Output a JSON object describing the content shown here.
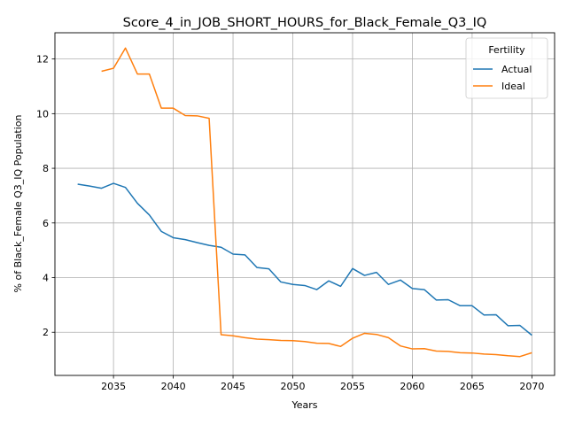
{
  "chart_data": {
    "type": "line",
    "title": "Score_4_in_JOB_SHORT_HOURS_for_Black_Female_Q3_IQ",
    "xlabel": "Years",
    "ylabel": "% of Black_Female Q3_IQ Population",
    "xlim": [
      2030.1,
      2071.9
    ],
    "ylim": [
      0.42,
      12.96
    ],
    "xticks": [
      2035,
      2040,
      2045,
      2050,
      2055,
      2060,
      2065,
      2070
    ],
    "yticks": [
      2,
      4,
      6,
      8,
      10,
      12
    ],
    "grid": true,
    "legend": {
      "title": "Fertility",
      "placement": "top-right"
    },
    "series": [
      {
        "name": "Actual",
        "color": "#1f77b4",
        "x": [
          2032,
          2033,
          2034,
          2035,
          2036,
          2037,
          2038,
          2039,
          2040,
          2041,
          2042,
          2043,
          2044,
          2045,
          2046,
          2047,
          2048,
          2049,
          2050,
          2051,
          2052,
          2053,
          2054,
          2055,
          2056,
          2057,
          2058,
          2059,
          2060,
          2061,
          2062,
          2063,
          2064,
          2065,
          2066,
          2067,
          2068,
          2069,
          2070
        ],
        "y": [
          7.42,
          7.35,
          7.27,
          7.45,
          7.3,
          6.72,
          6.29,
          5.69,
          5.46,
          5.39,
          5.28,
          5.18,
          5.11,
          4.86,
          4.83,
          4.37,
          4.32,
          3.84,
          3.75,
          3.71,
          3.56,
          3.88,
          3.68,
          4.33,
          4.08,
          4.19,
          3.75,
          3.91,
          3.6,
          3.56,
          3.18,
          3.19,
          2.97,
          2.97,
          2.63,
          2.64,
          2.24,
          2.25,
          1.89
        ]
      },
      {
        "name": "Ideal",
        "color": "#ff7f0e",
        "x": [
          2034,
          2035,
          2036,
          2037,
          2038,
          2039,
          2040,
          2041,
          2042,
          2043,
          2044,
          2045,
          2046,
          2047,
          2048,
          2049,
          2050,
          2051,
          2052,
          2053,
          2054,
          2055,
          2056,
          2057,
          2058,
          2059,
          2060,
          2061,
          2062,
          2063,
          2064,
          2065,
          2066,
          2067,
          2068,
          2069,
          2070
        ],
        "y": [
          11.55,
          11.66,
          12.4,
          11.45,
          11.45,
          10.2,
          10.2,
          9.93,
          9.92,
          9.83,
          1.91,
          1.87,
          1.8,
          1.75,
          1.73,
          1.7,
          1.69,
          1.66,
          1.6,
          1.59,
          1.48,
          1.78,
          1.96,
          1.92,
          1.8,
          1.5,
          1.39,
          1.4,
          1.31,
          1.3,
          1.25,
          1.24,
          1.2,
          1.18,
          1.14,
          1.11,
          1.25
        ]
      }
    ]
  }
}
